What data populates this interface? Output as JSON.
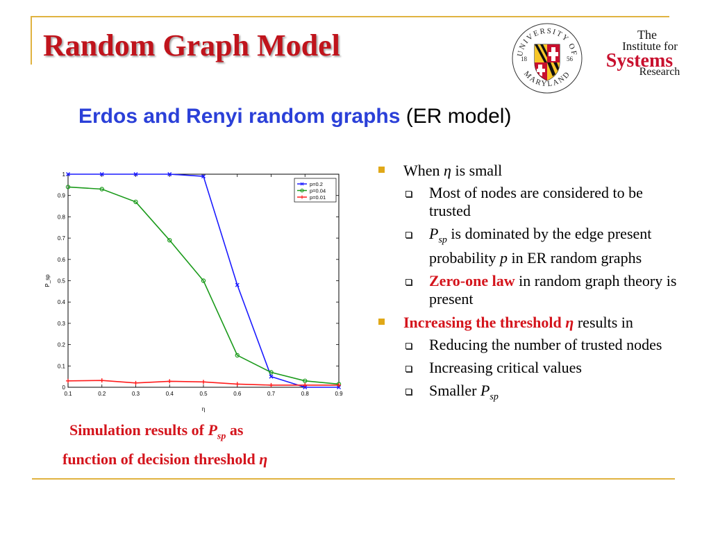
{
  "slide": {
    "title": "Random Graph Model",
    "subtitle": {
      "emphasis": "Erdos and Renyi random graphs",
      "rest": "(ER model)"
    }
  },
  "logos": {
    "university": {
      "ring_top": "UNIVERSITY OF",
      "ring_bottom": "MARYLAND",
      "year_left": "18",
      "year_right": "56"
    },
    "institute": {
      "line1": "The",
      "line2": "Institute for",
      "line3": "Systems",
      "line4": "Research"
    }
  },
  "caption": {
    "line1_pre": "Simulation results of ",
    "line1_var": "P",
    "line1_sub": "sp",
    "line1_post": " as",
    "line2_pre": "function of decision threshold ",
    "line2_var": "η"
  },
  "bullets": [
    {
      "parts": [
        {
          "text": "When "
        },
        {
          "text": "η",
          "italic": true
        },
        {
          "text": " is small"
        }
      ],
      "children": [
        {
          "parts": [
            {
              "text": "Most of nodes are considered to be trusted"
            }
          ]
        },
        {
          "parts": [
            {
              "text": "P",
              "italic": true
            },
            {
              "text": "sp",
              "italic": true,
              "sub": true
            },
            {
              "text": " is dominated by the edge present probability "
            },
            {
              "text": "p",
              "italic": true
            },
            {
              "text": " in ER random graphs"
            }
          ]
        },
        {
          "parts": [
            {
              "text": "Zero-one law",
              "red": true
            },
            {
              "text": " in random graph theory is present"
            }
          ]
        }
      ]
    },
    {
      "parts": [
        {
          "text": "Increasing the threshold ",
          "red": true
        },
        {
          "text": "η",
          "red": true,
          "italic": true
        },
        {
          "text": " results in"
        }
      ],
      "children": [
        {
          "parts": [
            {
              "text": "Reducing the number of trusted nodes"
            }
          ]
        },
        {
          "parts": [
            {
              "text": "Increasing critical values"
            }
          ]
        },
        {
          "parts": [
            {
              "text": "Smaller "
            },
            {
              "text": "P",
              "italic": true
            },
            {
              "text": "sp",
              "italic": true,
              "sub": true
            }
          ]
        }
      ]
    }
  ],
  "chart_data": {
    "type": "line",
    "title": "",
    "xlabel": "η",
    "ylabel": "P_sp",
    "x": [
      0.1,
      0.2,
      0.3,
      0.4,
      0.5,
      0.6,
      0.7,
      0.8,
      0.9
    ],
    "xlim": [
      0.1,
      0.9
    ],
    "ylim": [
      0,
      1
    ],
    "xticks": [
      "0.1",
      "0.2",
      "0.3",
      "0.4",
      "0.5",
      "0.6",
      "0.7",
      "0.8",
      "0.9"
    ],
    "yticks": [
      "0",
      "0.1",
      "0.2",
      "0.3",
      "0.4",
      "0.5",
      "0.6",
      "0.7",
      "0.8",
      "0.9",
      "1"
    ],
    "grid": false,
    "legend": "top-right",
    "series": [
      {
        "name": "p=0.2",
        "color": "#1a1aff",
        "marker": "x",
        "values": [
          1.0,
          1.0,
          1.0,
          1.0,
          0.99,
          0.48,
          0.05,
          0.0,
          0.0
        ]
      },
      {
        "name": "p=0.04",
        "color": "#1a9a1a",
        "marker": "o",
        "values": [
          0.94,
          0.93,
          0.87,
          0.69,
          0.5,
          0.15,
          0.07,
          0.03,
          0.015
        ]
      },
      {
        "name": "p=0.01",
        "color": "#ff1a1a",
        "marker": "+",
        "values": [
          0.03,
          0.032,
          0.02,
          0.028,
          0.025,
          0.015,
          0.01,
          0.01,
          0.01
        ]
      }
    ]
  }
}
